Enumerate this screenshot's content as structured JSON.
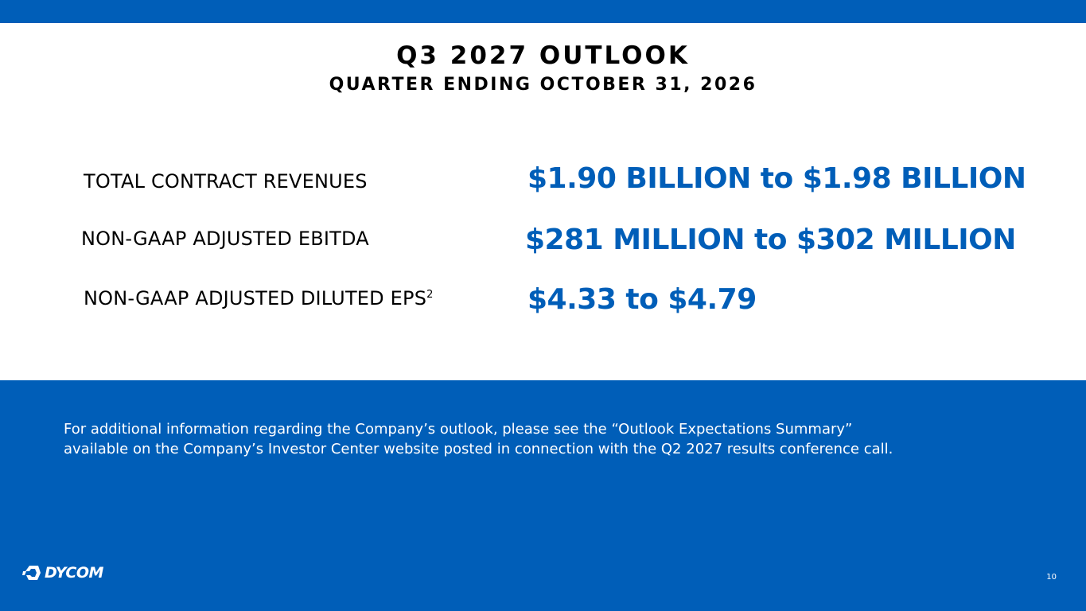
{
  "colors": {
    "brand": "#005eb8",
    "text": "#000000",
    "on_brand": "#ffffff"
  },
  "header": {
    "title": "Q3 2027 OUTLOOK",
    "subtitle": "QUARTER ENDING OCTOBER 31, 2026"
  },
  "metrics": [
    {
      "label": "TOTAL CONTRACT REVENUES",
      "value": "$1.90 BILLION to $1.98 BILLION"
    },
    {
      "label": "NON-GAAP ADJUSTED EBITDA",
      "value": "$281 MILLION to $302 MILLION"
    },
    {
      "label": "NON-GAAP ADJUSTED DILUTED EPS",
      "footnote_mark": "2",
      "value": "$4.33 to $4.79"
    }
  ],
  "footer": {
    "note_line_1": "For additional information regarding the Company’s outlook, please see the “Outlook Expectations Summary”",
    "note_line_2": "available on the Company’s Investor Center website posted in connection with the Q2 2027 results conference call.",
    "logo_text": "DYCOM",
    "logo_icon": "dycom-logo-icon",
    "page_number": "10"
  }
}
